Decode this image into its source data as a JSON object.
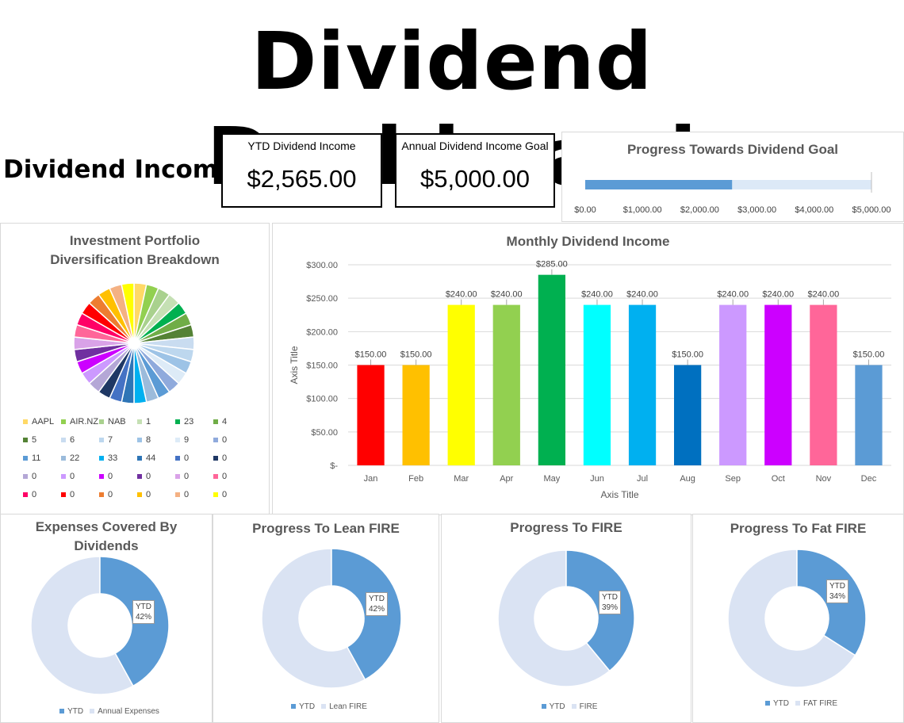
{
  "title": "Dividend Dashboard",
  "section_title": "Dividend Income",
  "kpis": {
    "ytd": {
      "label": "YTD Dividend Income",
      "value": "$2,565.00"
    },
    "goal": {
      "label": "Annual Dividend Income Goal",
      "value": "$5,000.00"
    }
  },
  "chart_data": [
    {
      "type": "bar",
      "id": "progress",
      "title": "Progress Towards Dividend Goal",
      "orientation": "horizontal",
      "value": 2565,
      "xlim": [
        0,
        5000
      ],
      "ticks": [
        "$0.00",
        "$1,000.00",
        "$2,000.00",
        "$3,000.00",
        "$4,000.00",
        "$5,000.00"
      ],
      "colors": {
        "fill": "#5b9bd5",
        "track": "#dce9f7"
      }
    },
    {
      "type": "pie",
      "id": "portfolio",
      "title_lines": [
        "Investment Portfolio",
        "Diversification Breakdown"
      ],
      "legend": [
        {
          "label": "AAPL",
          "color": "#ffd966"
        },
        {
          "label": "AIR.NZ",
          "color": "#92d050"
        },
        {
          "label": "NAB",
          "color": "#a9d18e"
        },
        {
          "label": "1",
          "color": "#c5e0b4"
        },
        {
          "label": "23",
          "color": "#00b050"
        },
        {
          "label": "4",
          "color": "#70ad47"
        },
        {
          "label": "5",
          "color": "#548235"
        },
        {
          "label": "6",
          "color": "#c9dcf0"
        },
        {
          "label": "7",
          "color": "#bdd7ee"
        },
        {
          "label": "8",
          "color": "#9dc3e6"
        },
        {
          "label": "9",
          "color": "#ddebf7"
        },
        {
          "label": "0",
          "color": "#8faadc"
        },
        {
          "label": "11",
          "color": "#5b9bd5"
        },
        {
          "label": "22",
          "color": "#9bbbdb"
        },
        {
          "label": "33",
          "color": "#00b0f0"
        },
        {
          "label": "44",
          "color": "#2e75b6"
        },
        {
          "label": "0",
          "color": "#4472c4"
        },
        {
          "label": "0",
          "color": "#1f3864"
        },
        {
          "label": "0",
          "color": "#b4a7d6"
        },
        {
          "label": "0",
          "color": "#cc99ff"
        },
        {
          "label": "0",
          "color": "#cc00ff"
        },
        {
          "label": "0",
          "color": "#7030a0"
        },
        {
          "label": "0",
          "color": "#d9a2e8"
        },
        {
          "label": "0",
          "color": "#ff6699"
        },
        {
          "label": "0",
          "color": "#ff0066"
        },
        {
          "label": "0",
          "color": "#ff0000"
        },
        {
          "label": "0",
          "color": "#ed7d31"
        },
        {
          "label": "0",
          "color": "#ffc000"
        },
        {
          "label": "0",
          "color": "#f4b183"
        },
        {
          "label": "0",
          "color": "#ffff00"
        }
      ],
      "slice_colors": [
        "#ffd966",
        "#92d050",
        "#a9d18e",
        "#c5e0b4",
        "#00b050",
        "#70ad47",
        "#548235",
        "#c9dcf0",
        "#bdd7ee",
        "#9dc3e6",
        "#ddebf7",
        "#8faadc",
        "#5b9bd5",
        "#9bbbdb",
        "#00b0f0",
        "#2e75b6",
        "#4472c4",
        "#1f3864",
        "#b4a7d6",
        "#cc99ff",
        "#cc00ff",
        "#7030a0",
        "#d9a2e8",
        "#ff6699",
        "#ff0066",
        "#ff0000",
        "#ed7d31",
        "#ffc000",
        "#f4b183",
        "#ffff00"
      ]
    },
    {
      "type": "bar",
      "id": "monthly",
      "title": "Monthly Dividend Income",
      "xlabel": "Axis Title",
      "ylabel": "Axis Title",
      "categories": [
        "Jan",
        "Feb",
        "Mar",
        "Apr",
        "May",
        "Jun",
        "Jul",
        "Aug",
        "Sep",
        "Oct",
        "Nov",
        "Dec"
      ],
      "values": [
        150,
        150,
        240,
        240,
        285,
        240,
        240,
        150,
        240,
        240,
        240,
        150
      ],
      "data_labels": [
        "$150.00",
        "$150.00",
        "$240.00",
        "$240.00",
        "$285.00",
        "$240.00",
        "$240.00",
        "$150.00",
        "$240.00",
        "$240.00",
        "$240.00",
        "$150.00"
      ],
      "colors": [
        "#ff0000",
        "#ffc000",
        "#ffff00",
        "#92d050",
        "#00b050",
        "#00ffff",
        "#00b0f0",
        "#0070c0",
        "#cc99ff",
        "#cc00ff",
        "#ff6699",
        "#5b9bd5"
      ],
      "ylim": [
        0,
        300
      ],
      "yticks": [
        "$-",
        "$50.00",
        "$100.00",
        "$150.00",
        "$200.00",
        "$250.00",
        "$300.00"
      ],
      "grid": true
    },
    {
      "type": "pie",
      "id": "expenses",
      "title_lines": [
        "Expenses Covered By",
        "Dividends"
      ],
      "value_fraction": 0.42,
      "label_lines": [
        "YTD",
        "42%"
      ],
      "legend": [
        {
          "label": "YTD",
          "color": "#5b9bd5"
        },
        {
          "label": "Annual Expenses",
          "color": "#dae3f3"
        }
      ]
    },
    {
      "type": "pie",
      "id": "lean",
      "title_lines": [
        "Progress To Lean FIRE"
      ],
      "value_fraction": 0.42,
      "label_lines": [
        "YTD",
        "42%"
      ],
      "legend": [
        {
          "label": "YTD",
          "color": "#5b9bd5"
        },
        {
          "label": "Lean FIRE",
          "color": "#dae3f3"
        }
      ]
    },
    {
      "type": "pie",
      "id": "fire",
      "title_lines": [
        "Progress To FIRE"
      ],
      "value_fraction": 0.39,
      "label_lines": [
        "YTD",
        "39%"
      ],
      "legend": [
        {
          "label": "YTD",
          "color": "#5b9bd5"
        },
        {
          "label": "FIRE",
          "color": "#dae3f3"
        }
      ]
    },
    {
      "type": "pie",
      "id": "fat",
      "title_lines": [
        "Progress To Fat FIRE"
      ],
      "value_fraction": 0.34,
      "label_lines": [
        "YTD",
        "34%"
      ],
      "legend": [
        {
          "label": "YTD",
          "color": "#5b9bd5"
        },
        {
          "label": "FAT FIRE",
          "color": "#dae3f3"
        }
      ]
    }
  ]
}
